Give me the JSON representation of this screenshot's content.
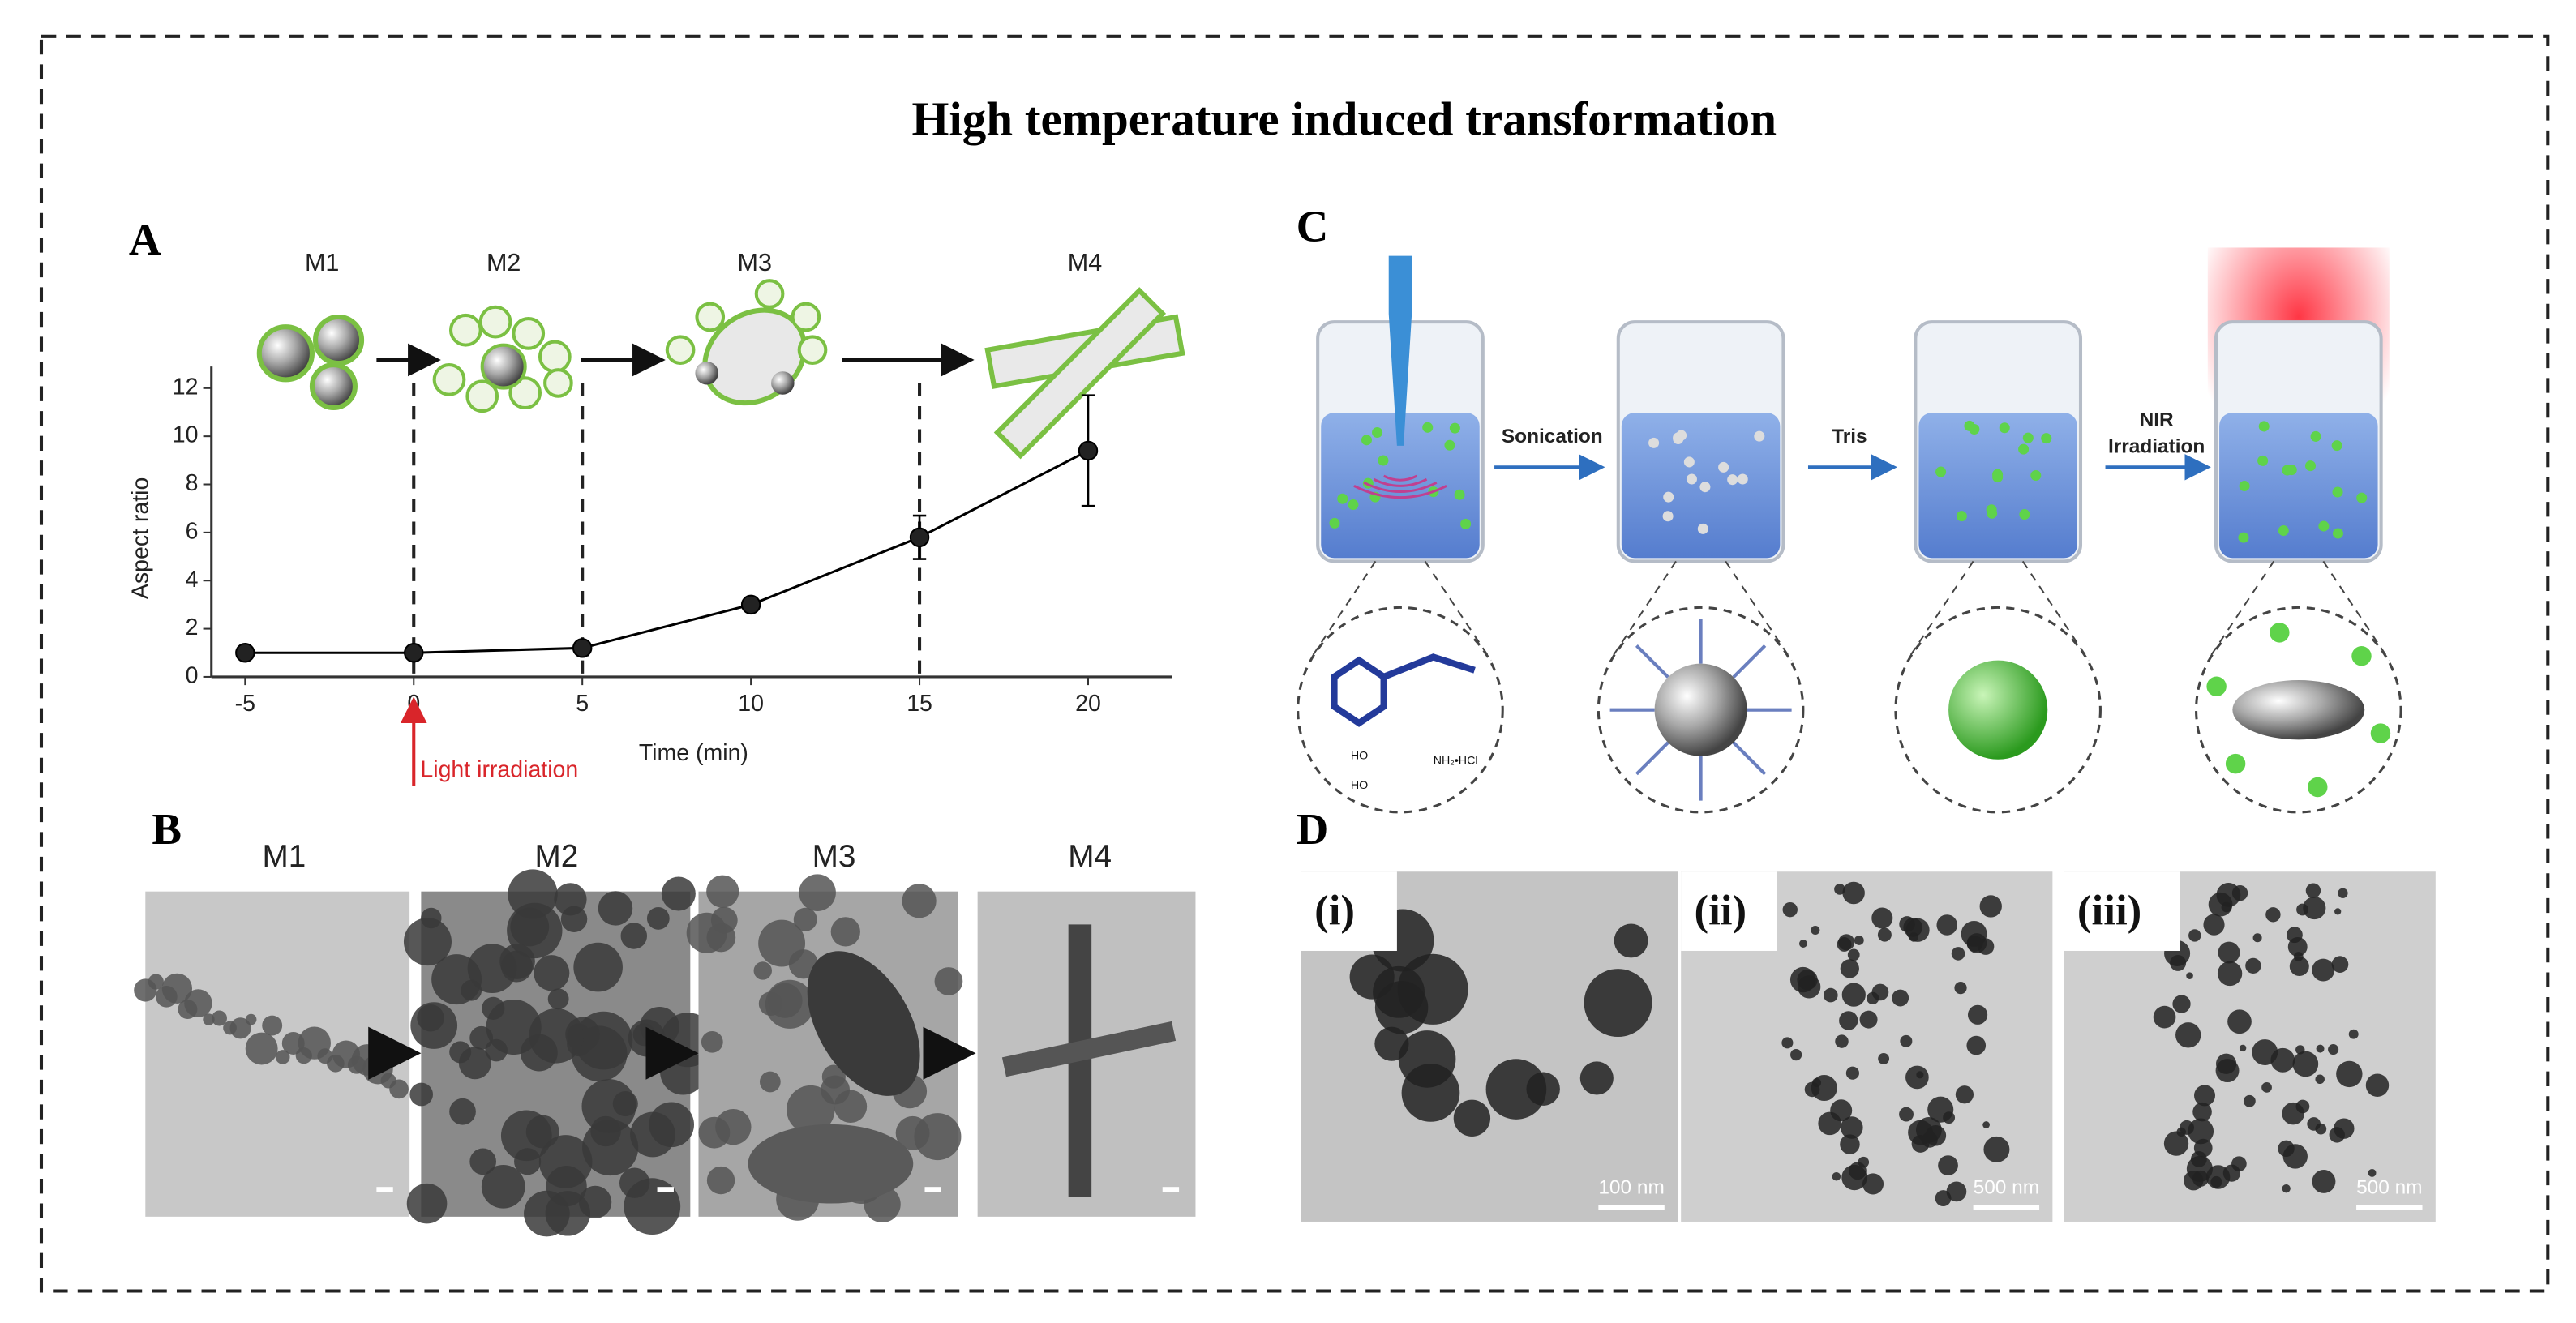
{
  "title": "High temperature induced transformation",
  "panels": {
    "a": "A",
    "b": "B",
    "c": "C",
    "d": "D"
  },
  "chart_data": {
    "type": "line",
    "x_label": "Time (min)",
    "y_label": "Aspect ratio",
    "annotation": "Light irradiation",
    "stages": [
      "M1",
      "M2",
      "M3",
      "M4"
    ],
    "x": [
      -5,
      0,
      5,
      10,
      15,
      20
    ],
    "values": [
      1,
      1,
      1.2,
      3,
      5.8,
      9.4
    ],
    "errors": [
      null,
      null,
      0.3,
      null,
      0.9,
      2.3
    ],
    "color": "#000000",
    "xlim": [
      -6,
      22.5
    ],
    "ylim": [
      0,
      12.9
    ],
    "xticks": [
      -5,
      0,
      5,
      10,
      15,
      20
    ],
    "yticks": [
      0,
      2,
      4,
      6,
      8,
      10,
      12
    ]
  },
  "panel_b": {
    "labels": [
      "M1",
      "M2",
      "M3",
      "M4"
    ]
  },
  "panel_c": {
    "steps": [
      "Sonication",
      "Tris",
      "NIR",
      "Irradiation"
    ],
    "chem": [
      "HO",
      "HO",
      "NH₂•HCl"
    ]
  },
  "panel_d": {
    "labels": [
      "(i)",
      "(ii)",
      "(iii)"
    ],
    "scales": [
      "100 nm",
      "500 nm",
      "500 nm"
    ]
  }
}
